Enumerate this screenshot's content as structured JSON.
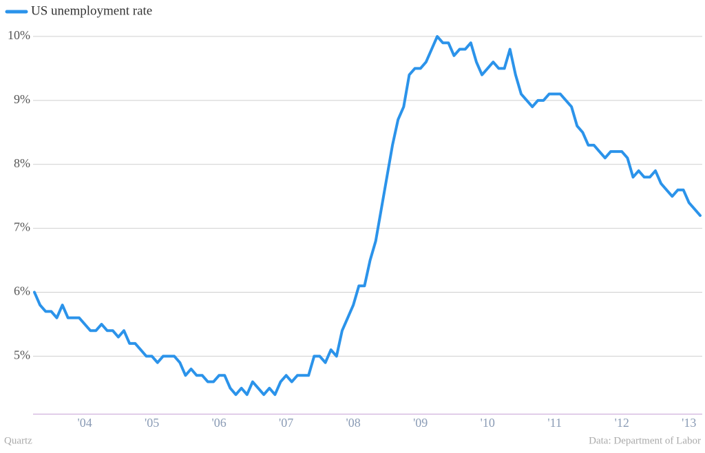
{
  "chart_data": {
    "type": "line",
    "series": [
      {
        "name": "US unemployment rate",
        "color": "#2b93ea",
        "values": [
          6.0,
          5.8,
          5.7,
          5.7,
          5.6,
          5.8,
          5.6,
          5.6,
          5.6,
          5.5,
          5.4,
          5.4,
          5.5,
          5.4,
          5.4,
          5.3,
          5.4,
          5.2,
          5.2,
          5.1,
          5.0,
          5.0,
          4.9,
          5.0,
          5.0,
          5.0,
          4.9,
          4.7,
          4.8,
          4.7,
          4.7,
          4.6,
          4.6,
          4.7,
          4.7,
          4.5,
          4.4,
          4.5,
          4.4,
          4.6,
          4.5,
          4.4,
          4.5,
          4.4,
          4.6,
          4.7,
          4.6,
          4.7,
          4.7,
          4.7,
          5.0,
          5.0,
          4.9,
          5.1,
          5.0,
          5.4,
          5.6,
          5.8,
          6.1,
          6.1,
          6.5,
          6.8,
          7.3,
          7.8,
          8.3,
          8.7,
          8.9,
          9.4,
          9.5,
          9.5,
          9.6,
          9.8,
          10.0,
          9.9,
          9.9,
          9.7,
          9.8,
          9.8,
          9.9,
          9.6,
          9.4,
          9.5,
          9.6,
          9.5,
          9.5,
          9.8,
          9.4,
          9.1,
          9.0,
          8.9,
          9.0,
          9.0,
          9.1,
          9.1,
          9.1,
          9.0,
          8.9,
          8.6,
          8.5,
          8.3,
          8.3,
          8.2,
          8.1,
          8.2,
          8.2,
          8.2,
          8.1,
          7.8,
          7.9,
          7.8,
          7.8,
          7.9,
          7.7,
          7.6,
          7.5,
          7.6,
          7.6,
          7.4,
          7.3,
          7.2
        ]
      }
    ],
    "categories": [
      null,
      null,
      null,
      null,
      null,
      null,
      null,
      null,
      null,
      "'04",
      null,
      null,
      null,
      null,
      null,
      null,
      null,
      null,
      null,
      null,
      null,
      "'05",
      null,
      null,
      null,
      null,
      null,
      null,
      null,
      null,
      null,
      null,
      null,
      "'06",
      null,
      null,
      null,
      null,
      null,
      null,
      null,
      null,
      null,
      null,
      null,
      "'07",
      null,
      null,
      null,
      null,
      null,
      null,
      null,
      null,
      null,
      null,
      null,
      "'08",
      null,
      null,
      null,
      null,
      null,
      null,
      null,
      null,
      null,
      null,
      null,
      "'09",
      null,
      null,
      null,
      null,
      null,
      null,
      null,
      null,
      null,
      null,
      null,
      "'10",
      null,
      null,
      null,
      null,
      null,
      null,
      null,
      null,
      null,
      null,
      null,
      "'11",
      null,
      null,
      null,
      null,
      null,
      null,
      null,
      null,
      null,
      null,
      null,
      "'12",
      null,
      null,
      null,
      null,
      null,
      null,
      null,
      null,
      null,
      null,
      null,
      "'13",
      null,
      null
    ],
    "ylim": [
      4.1,
      10.15
    ],
    "yticks": [
      {
        "value": 5,
        "label": "5%"
      },
      {
        "value": 6,
        "label": "6%"
      },
      {
        "value": 7,
        "label": "7%"
      },
      {
        "value": 8,
        "label": "8%"
      },
      {
        "value": 9,
        "label": "9%"
      },
      {
        "value": 10,
        "label": "10%"
      }
    ],
    "grid": true,
    "source": "Data: Department of Labor",
    "credit": "Quartz"
  }
}
